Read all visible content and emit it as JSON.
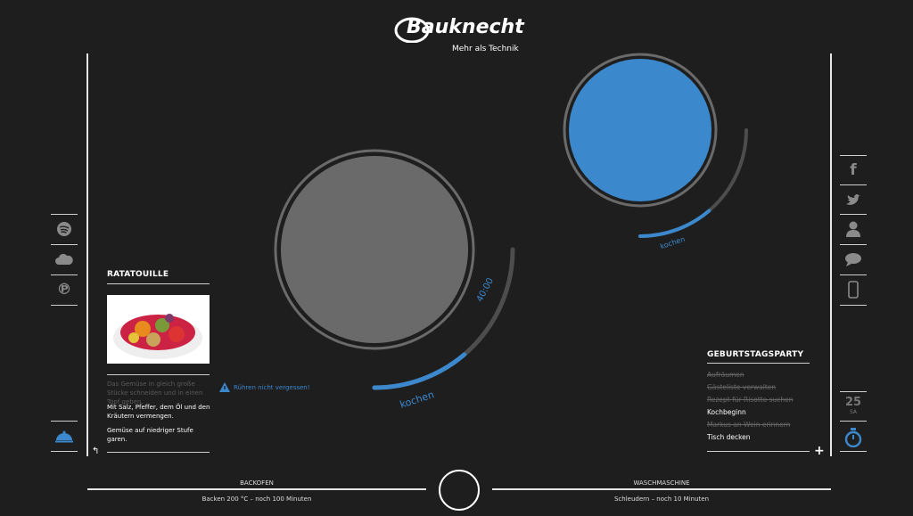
{
  "header": {
    "logo": "Bauknecht",
    "slogan": "Mehr als Technik"
  },
  "colors": {
    "accent": "#3b88cc",
    "background": "#1e1e1f",
    "plate": "#6a6a6a"
  },
  "left_sidebar": {
    "icons": [
      "spotify-icon",
      "cloud-icon",
      "pinterest-icon"
    ],
    "bottom_icon": "cloche-icon"
  },
  "right_sidebar": {
    "icons": [
      "facebook-icon",
      "twitter-icon",
      "person-icon",
      "chat-icon",
      "phone-icon"
    ],
    "date_day": "25",
    "date_weekday": "SA",
    "bottom_icon": "stopwatch-icon"
  },
  "recipe": {
    "title": "RATATOUILLE",
    "steps": [
      {
        "text": "Das Gemüse in gleich große Stücke schneiden und in einen Topf geben.",
        "done": true
      },
      {
        "text": "Mit Salz, Pfeffer, dem Öl und den Kräutern vermengen.",
        "done": false
      },
      {
        "text": "Gemüse auf niedriger Stufe garen.",
        "done": false
      }
    ],
    "alert": "Rühren nicht vergessen!"
  },
  "burner_large": {
    "timer": "40:00",
    "mode": "kochen",
    "level": 0.45
  },
  "burner_small": {
    "mode": "kochen",
    "level": 0.45
  },
  "todo": {
    "title": "GEBURTSTAGSPARTY",
    "items": [
      {
        "text": "Aufräumen",
        "done": true
      },
      {
        "text": "Gästeliste verwalten",
        "done": true
      },
      {
        "text": "Rezept für Risotto suchen",
        "done": true
      },
      {
        "text": "Kochbeginn",
        "done": false
      },
      {
        "text": "Markus an Wein erinnern",
        "done": true
      },
      {
        "text": "Tisch decken",
        "done": false
      }
    ]
  },
  "footer": {
    "oven_label": "BACKOFEN",
    "oven_status": "Backen 200 °C – noch 100 Minuten",
    "washer_label": "WASCHMASCHINE",
    "washer_status": "Schleudern – noch 10 Minuten"
  }
}
